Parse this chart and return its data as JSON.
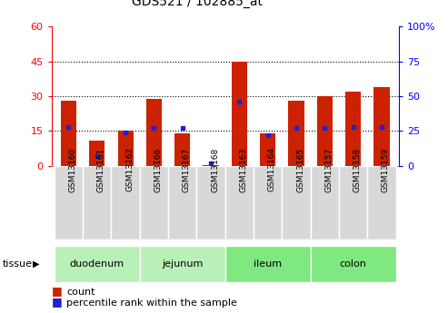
{
  "title": "GDS521 / 102885_at",
  "samples": [
    "GSM13160",
    "GSM13161",
    "GSM13162",
    "GSM13166",
    "GSM13167",
    "GSM13168",
    "GSM13163",
    "GSM13164",
    "GSM13165",
    "GSM13157",
    "GSM13158",
    "GSM13159"
  ],
  "count": [
    28,
    11,
    15,
    29,
    14,
    0.5,
    45,
    14,
    28,
    30,
    32,
    34
  ],
  "percentile": [
    28,
    7,
    24,
    27,
    27,
    2,
    46,
    22,
    27,
    27,
    28,
    28
  ],
  "bar_color": "#cc2200",
  "marker_color": "#2222cc",
  "left_ylim": [
    0,
    60
  ],
  "right_ylim": [
    0,
    100
  ],
  "left_yticks": [
    0,
    15,
    30,
    45,
    60
  ],
  "right_yticks": [
    0,
    25,
    50,
    75,
    100
  ],
  "right_yticklabels": [
    "0",
    "25",
    "50",
    "75",
    "100%"
  ],
  "hgrid_at": [
    15,
    30,
    45
  ],
  "tissue_groups": [
    {
      "label": "duodenum",
      "start": 0,
      "end": 3,
      "color": "#b8f0b8"
    },
    {
      "label": "jejunum",
      "start": 3,
      "end": 6,
      "color": "#b8f0b8"
    },
    {
      "label": "ileum",
      "start": 6,
      "end": 9,
      "color": "#80e880"
    },
    {
      "label": "colon",
      "start": 9,
      "end": 12,
      "color": "#80e880"
    }
  ],
  "sample_bg_color": "#d8d8d8",
  "legend_count_label": "count",
  "legend_pct_label": "percentile rank within the sample"
}
